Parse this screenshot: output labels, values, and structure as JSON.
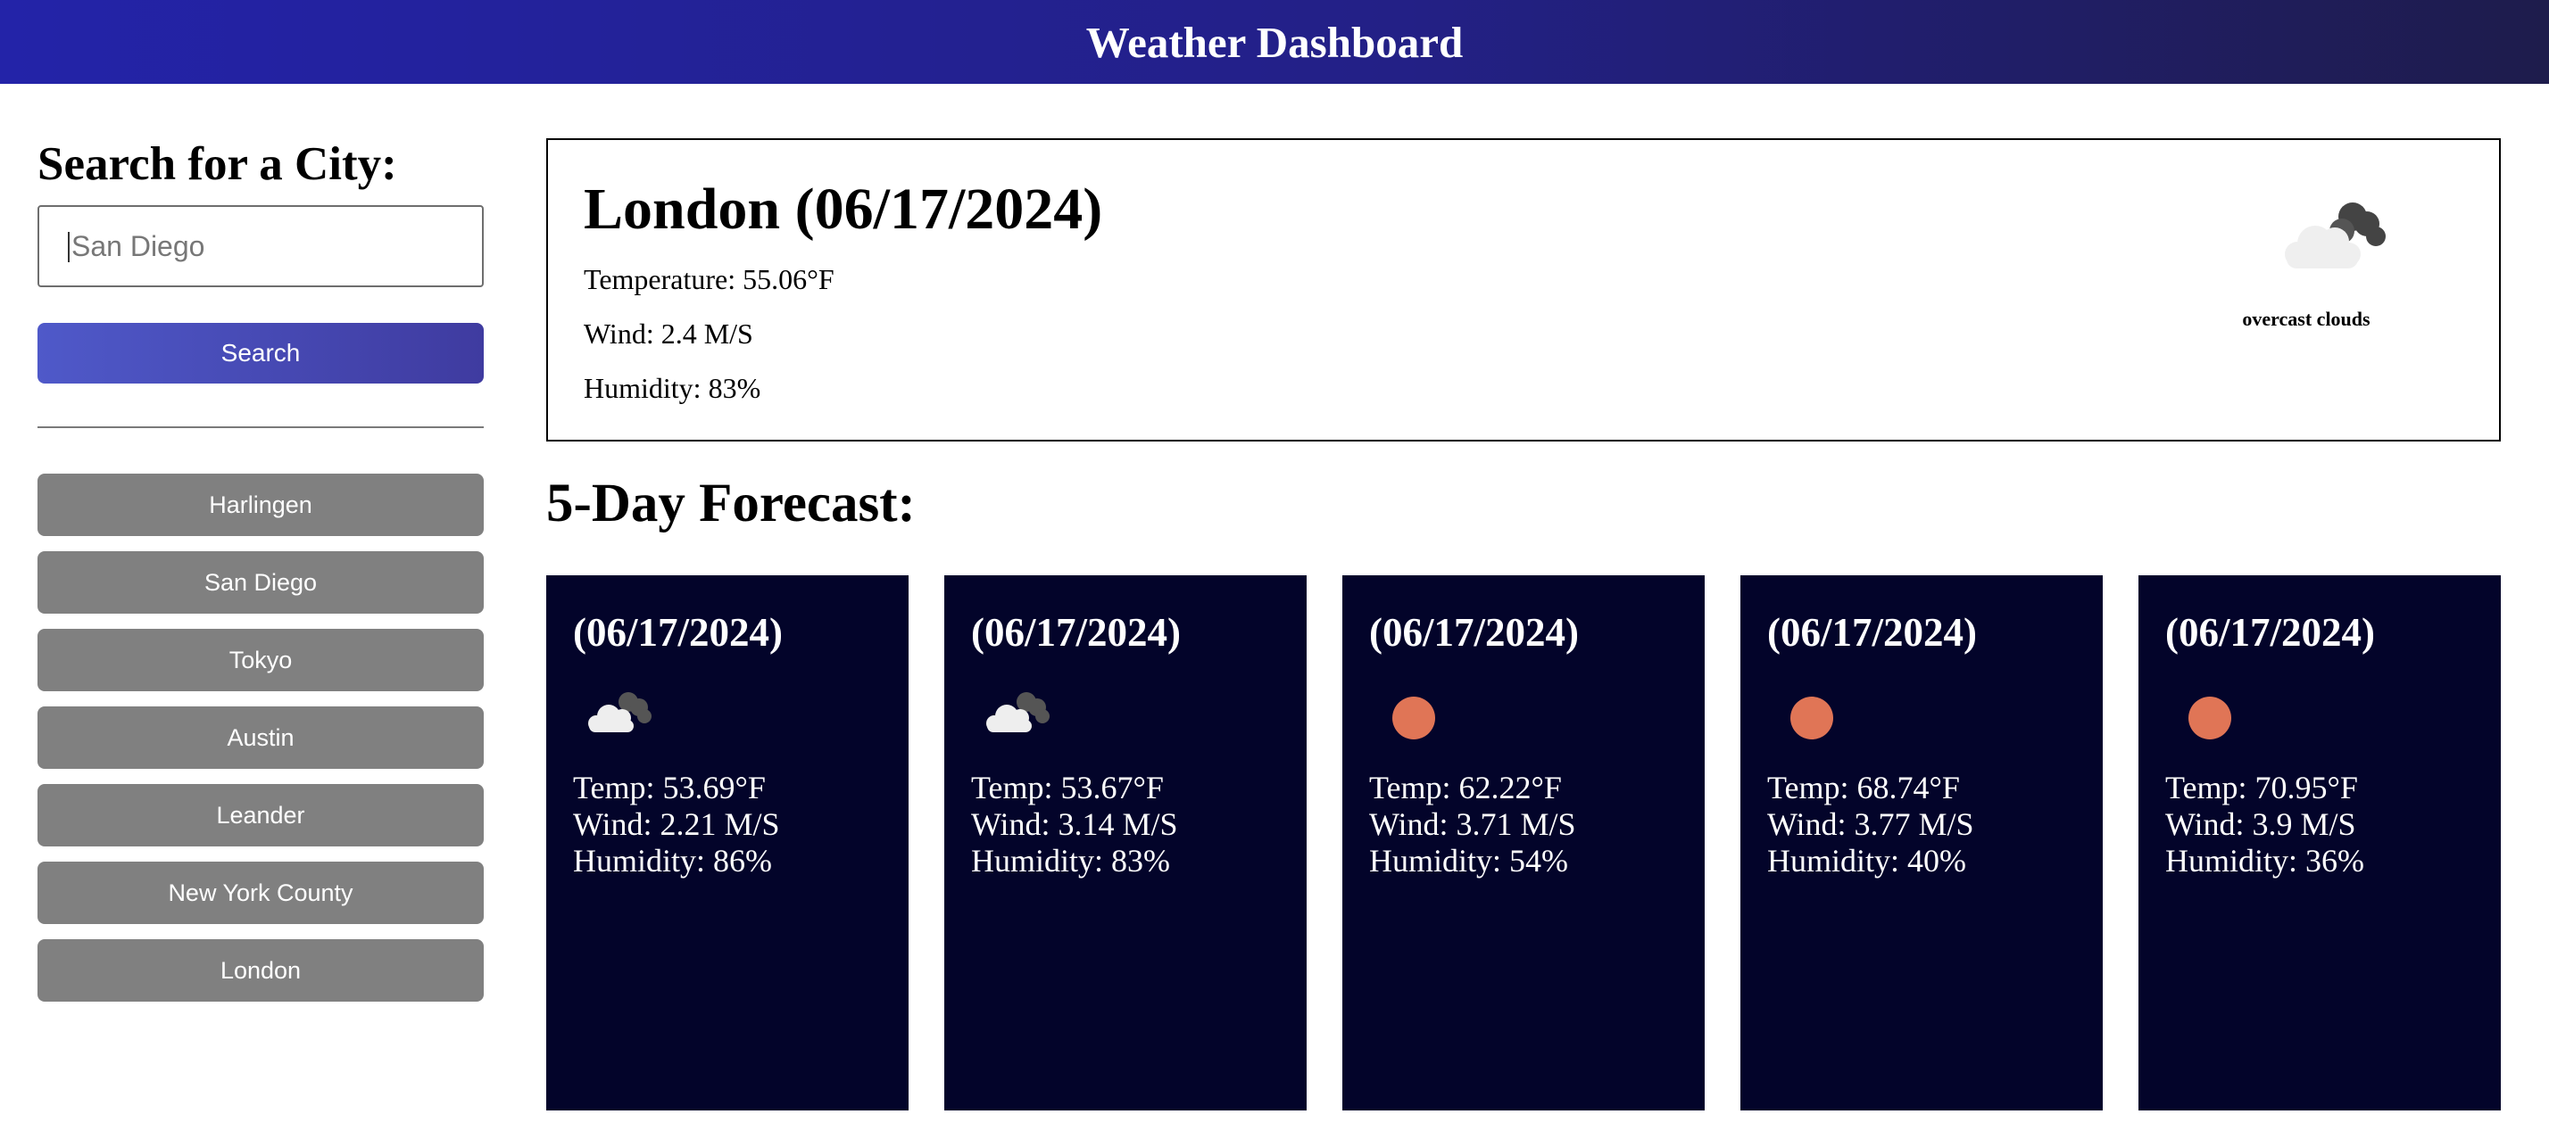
{
  "header": {
    "title": "Weather Dashboard"
  },
  "sidebar": {
    "heading": "Search for a City:",
    "search_placeholder": "San Diego",
    "search_button": "Search",
    "history": [
      "Harlingen",
      "San Diego",
      "Tokyo",
      "Austin",
      "Leander",
      "New York County",
      "London"
    ]
  },
  "current": {
    "title": "London (06/17/2024)",
    "temperature": "Temperature: 55.06°F",
    "wind": "Wind: 2.4 M/S",
    "humidity": "Humidity: 83%",
    "icon": "overcast-clouds-icon",
    "description": "overcast clouds"
  },
  "forecast": {
    "title": "5-Day Forecast:",
    "days": [
      {
        "date": "(06/17/2024)",
        "icon": "broken-clouds-icon",
        "temp": "Temp: 53.69°F",
        "wind": "Wind: 2.21 M/S",
        "humidity": "Humidity: 86%"
      },
      {
        "date": "(06/17/2024)",
        "icon": "broken-clouds-icon",
        "temp": "Temp: 53.67°F",
        "wind": "Wind: 3.14 M/S",
        "humidity": "Humidity: 83%"
      },
      {
        "date": "(06/17/2024)",
        "icon": "clear-sky-icon",
        "temp": "Temp: 62.22°F",
        "wind": "Wind: 3.71 M/S",
        "humidity": "Humidity: 54%"
      },
      {
        "date": "(06/17/2024)",
        "icon": "clear-sky-icon",
        "temp": "Temp: 68.74°F",
        "wind": "Wind: 3.77 M/S",
        "humidity": "Humidity: 40%"
      },
      {
        "date": "(06/17/2024)",
        "icon": "clear-sky-icon",
        "temp": "Temp: 70.95°F",
        "wind": "Wind: 3.9 M/S",
        "humidity": "Humidity: 36%"
      }
    ]
  },
  "colors": {
    "header_gradient": [
      "#2323a8",
      "#1e1c4c"
    ],
    "search_button_gradient": [
      "#4f59c9",
      "#3f3ba0"
    ],
    "history_button": "#808080",
    "forecast_card": "#03042a",
    "sun": "#e07556"
  }
}
